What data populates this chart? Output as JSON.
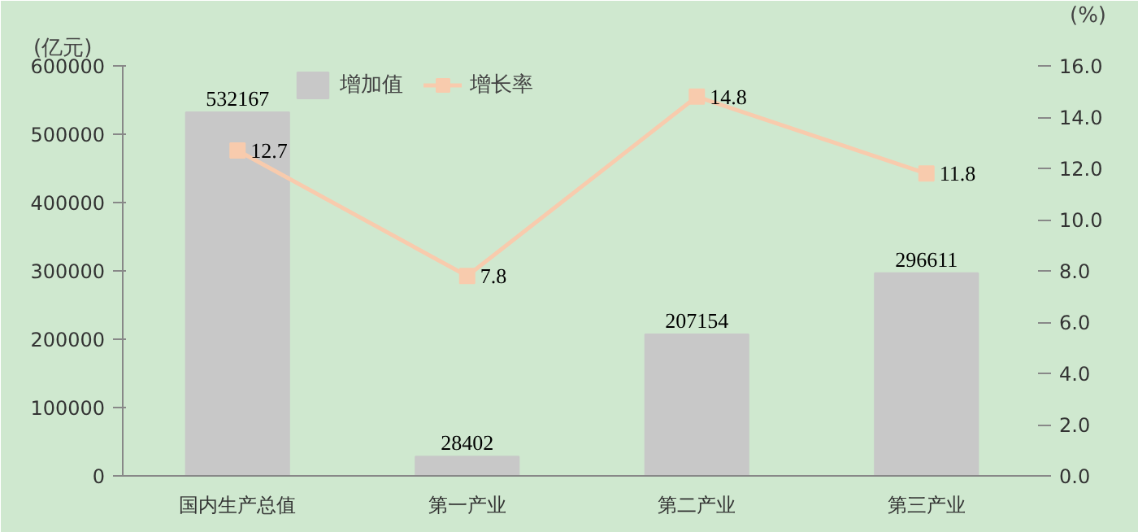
{
  "chart_data": {
    "type": "bar",
    "categories": [
      "国内生产总值",
      "第一产业",
      "第二产业",
      "第三产业"
    ],
    "ylabel": "(亿元)",
    "y2label": "(%)",
    "series": [
      {
        "name": "增加值",
        "color": "#c8c8c8",
        "values": [
          532167,
          28402,
          207154,
          296611
        ]
      },
      {
        "name": "增长率",
        "type": "line",
        "axis": "y2",
        "color": "#f8cbad",
        "values": [
          12.7,
          7.8,
          14.8,
          11.8
        ]
      }
    ],
    "ylim": [
      0,
      600000
    ],
    "yticks": [
      0,
      100000,
      200000,
      300000,
      400000,
      500000,
      600000
    ],
    "y2lim": [
      0,
      16
    ],
    "y2ticks": [
      {
        "value": 0,
        "label": "0.0"
      },
      {
        "value": 2,
        "label": "2.0"
      },
      {
        "value": 4,
        "label": "4.0"
      },
      {
        "value": 6,
        "label": "6.0"
      },
      {
        "value": 8,
        "label": "8.0"
      },
      {
        "value": 10,
        "label": "10.0"
      },
      {
        "value": 12,
        "label": "12.0"
      },
      {
        "value": 14,
        "label": "14.0"
      },
      {
        "value": 16,
        "label": "16.0"
      }
    ],
    "data_labels": true,
    "legend": "top",
    "marker": "square",
    "grid": false
  }
}
